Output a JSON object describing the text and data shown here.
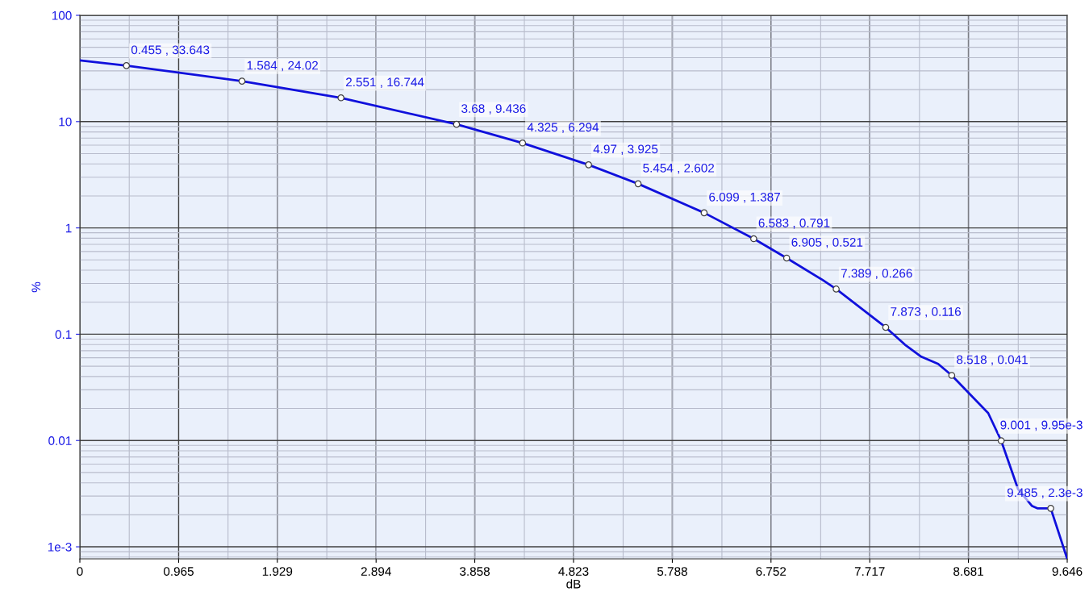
{
  "chart_data": {
    "type": "line",
    "xlabel": "dB",
    "ylabel": "%",
    "log": "y",
    "grid": true,
    "xlim": [
      0,
      9.646
    ],
    "xticks": [
      0,
      0.965,
      1.929,
      2.894,
      3.858,
      4.823,
      5.788,
      6.752,
      7.717,
      8.681,
      9.646
    ],
    "ylim": [
      0.00077,
      100
    ],
    "yticks": [
      {
        "value": 0.001,
        "label": "1e-3"
      },
      0.01,
      0.1,
      1,
      10,
      100
    ],
    "series": [
      {
        "type": "line",
        "color": "#1010dc",
        "marker": "none",
        "line_style": "solid",
        "x": [
          0,
          0.455,
          1.584,
          2.551,
          3.68,
          4.325,
          4.97,
          5.454,
          6.099,
          6.583,
          6.905,
          7.25,
          7.389,
          7.873,
          8.06,
          8.22,
          8.385,
          8.518,
          8.874,
          9.001,
          9.165,
          9.3,
          9.354,
          9.485,
          9.646
        ],
        "values": [
          37.7,
          33.643,
          24.02,
          16.744,
          9.436,
          6.294,
          3.925,
          2.602,
          1.387,
          0.791,
          0.521,
          0.327,
          0.266,
          0.116,
          0.0798,
          0.0614,
          0.0525,
          0.041,
          0.0181,
          0.00995,
          0.0035,
          0.00243,
          0.0023,
          0.0023,
          0.00077
        ]
      },
      {
        "type": "scatter",
        "color": "#ffffff",
        "marker": "circle",
        "x": [
          0.455,
          1.584,
          2.551,
          3.68,
          4.325,
          4.97,
          5.454,
          6.099,
          6.583,
          6.905,
          7.389,
          7.873,
          8.518,
          9.001,
          9.485
        ],
        "values": [
          33.643,
          24.02,
          16.744,
          9.436,
          6.294,
          3.925,
          2.602,
          1.387,
          0.791,
          0.521,
          0.266,
          0.116,
          0.041,
          0.00995,
          0.0023
        ],
        "value_labels": [
          "0.455 , 33.643",
          "1.584 , 24.02",
          "2.551 , 16.744",
          "3.68 , 9.436",
          "4.325 , 6.294",
          "4.97 , 3.925",
          "5.454 , 2.602",
          "6.099 , 1.387",
          "6.583 , 0.791",
          "6.905 , 0.521",
          "7.389 , 0.266",
          "7.873 , 0.116",
          "8.518 , 0.041",
          "9.001 , 9.95e-3",
          "9.485 , 2.3e-3"
        ]
      }
    ]
  }
}
